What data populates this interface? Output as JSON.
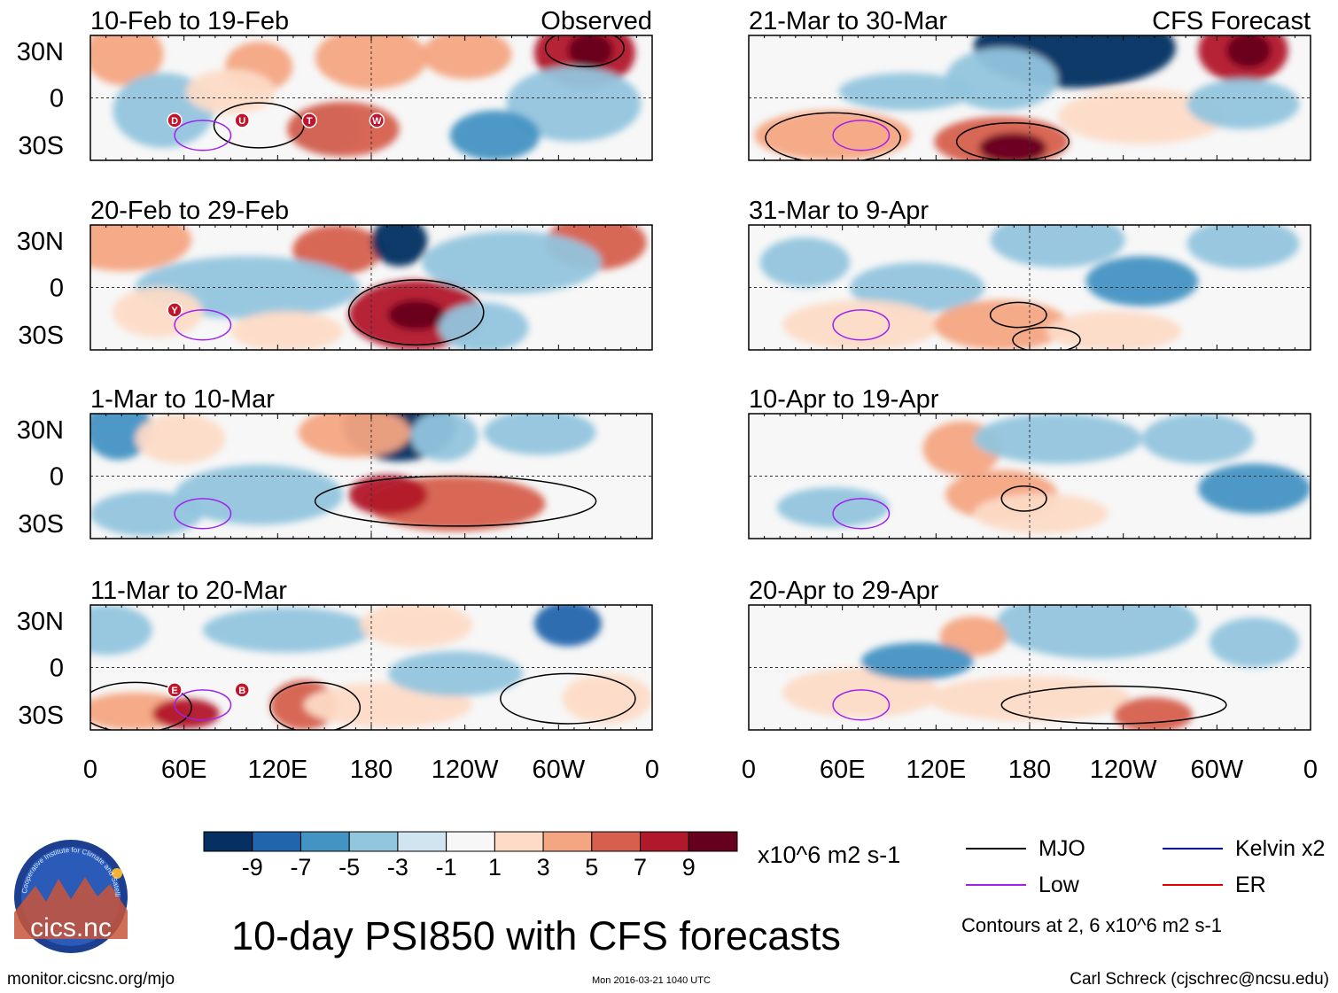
{
  "chart_data": {
    "type": "heatmap",
    "title": "10-day PSI850 with CFS forecasts",
    "observed_label": "Observed",
    "forecast_label": "CFS Forecast",
    "x_ticks": [
      "0",
      "60E",
      "120E",
      "180",
      "120W",
      "60W",
      "0"
    ],
    "y_ticks": [
      "30N",
      "0",
      "30S"
    ],
    "ylim": [
      -40,
      40
    ],
    "color_scale": {
      "levels": [
        "-9",
        "-7",
        "-5",
        "-3",
        "-1",
        "1",
        "3",
        "5",
        "7",
        "9"
      ],
      "colors": [
        "#053061",
        "#2166ac",
        "#4393c3",
        "#92c5de",
        "#d1e5f0",
        "#f7f7f7",
        "#fddbc7",
        "#f4a582",
        "#d6604d",
        "#b2182b",
        "#67001f"
      ],
      "units": "x10^6 m2 s-1"
    },
    "legend": {
      "items": [
        {
          "label": "MJO",
          "color": "#000000"
        },
        {
          "label": "Kelvin x2",
          "color": "#0000dd"
        },
        {
          "label": "Low",
          "color": "#a020f0"
        },
        {
          "label": "ER",
          "color": "#e00000"
        }
      ],
      "note": "Contours at 2, 6 x10^6 m2 s-1"
    },
    "panels": [
      {
        "period": "10-Feb to 19-Feb",
        "kind": "Observed",
        "storms": [
          "D",
          "U",
          "T",
          "W"
        ]
      },
      {
        "period": "20-Feb to 29-Feb",
        "kind": "Observed",
        "storms": [
          "Y"
        ]
      },
      {
        "period": "1-Mar to 10-Mar",
        "kind": "Observed",
        "storms": []
      },
      {
        "period": "11-Mar to 20-Mar",
        "kind": "Observed",
        "storms": [
          "E",
          "B"
        ]
      },
      {
        "period": "21-Mar to 30-Mar",
        "kind": "CFS Forecast",
        "storms": []
      },
      {
        "period": "31-Mar to 9-Apr",
        "kind": "CFS Forecast",
        "storms": []
      },
      {
        "period": "10-Apr to 19-Apr",
        "kind": "CFS Forecast",
        "storms": []
      },
      {
        "period": "20-Apr to 29-Apr",
        "kind": "CFS Forecast",
        "storms": []
      }
    ]
  },
  "logo": {
    "text": "cics.nc",
    "ring_text": "Cooperative Institute for Climate and Satellites"
  },
  "footer": {
    "url": "monitor.cicsnc.org/mjo",
    "timestamp": "Mon 2016-03-21 1040 UTC",
    "author": "Carl Schreck (cjschrec@ncsu.edu)"
  }
}
